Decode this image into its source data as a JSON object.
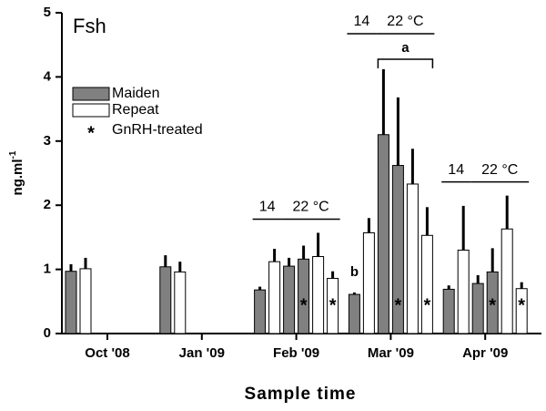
{
  "chart_data": {
    "type": "grouped-bar-error",
    "title": "Fsh",
    "x_label": "Sample time",
    "y_label": "ng.ml",
    "y_label_superscript": "-1",
    "ylim": [
      0,
      5
    ],
    "yticks": [
      0,
      1,
      2,
      3,
      4,
      5
    ],
    "series": [
      {
        "name": "Maiden",
        "color": "#808080"
      },
      {
        "name": "Repeat",
        "color": "#ffffff"
      }
    ],
    "treated_marker": "*",
    "treated_label": "GnRH-treated",
    "groups": [
      {
        "label": "Oct '08",
        "bars": [
          {
            "series": 0,
            "value": 0.97,
            "error": 0.11
          },
          {
            "series": 1,
            "value": 1.01,
            "error": 0.17
          }
        ]
      },
      {
        "label": "Jan '09",
        "bars": [
          {
            "series": 0,
            "value": 1.04,
            "error": 0.18
          },
          {
            "series": 1,
            "value": 0.96,
            "error": 0.16
          }
        ]
      },
      {
        "label": "Feb '09",
        "temps": [
          "14",
          "22 °C"
        ],
        "bars": [
          {
            "series": 0,
            "value": 0.68,
            "error": 0.05
          },
          {
            "series": 1,
            "value": 1.12,
            "error": 0.2
          },
          {
            "series": 0,
            "value": 1.05,
            "error": 0.13
          },
          {
            "series": 0,
            "value": 1.16,
            "error": 0.21,
            "treated": true
          },
          {
            "series": 1,
            "value": 1.2,
            "error": 0.37
          },
          {
            "series": 1,
            "value": 0.86,
            "error": 0.11,
            "treated": true
          }
        ]
      },
      {
        "label": "Mar '09",
        "temps": [
          "14",
          "22 °C"
        ],
        "bracket_label": "a",
        "bars": [
          {
            "series": 0,
            "value": 0.61,
            "error": 0.03,
            "letter": "b"
          },
          {
            "series": 1,
            "value": 1.57,
            "error": 0.23
          },
          {
            "series": 0,
            "value": 3.1,
            "error": 1.02
          },
          {
            "series": 0,
            "value": 2.62,
            "error": 1.06,
            "treated": true
          },
          {
            "series": 1,
            "value": 2.33,
            "error": 0.55
          },
          {
            "series": 1,
            "value": 1.53,
            "error": 0.44,
            "treated": true
          }
        ]
      },
      {
        "label": "Apr '09",
        "temps": [
          "14",
          "22 °C"
        ],
        "bars": [
          {
            "series": 0,
            "value": 0.69,
            "error": 0.06
          },
          {
            "series": 1,
            "value": 1.3,
            "error": 0.69
          },
          {
            "series": 0,
            "value": 0.78,
            "error": 0.13
          },
          {
            "series": 0,
            "value": 0.96,
            "error": 0.37,
            "treated": true
          },
          {
            "series": 1,
            "value": 1.63,
            "error": 0.52
          },
          {
            "series": 1,
            "value": 0.7,
            "error": 0.1,
            "treated": true
          }
        ]
      }
    ]
  }
}
